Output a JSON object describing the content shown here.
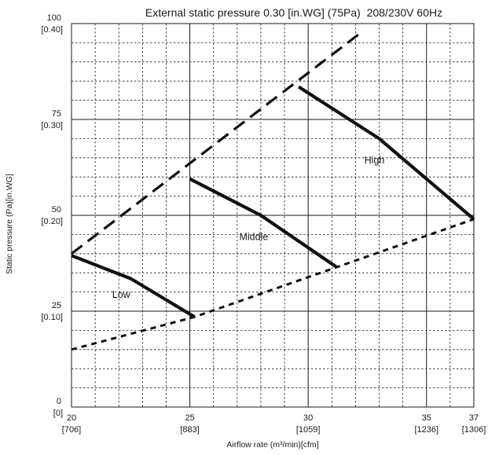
{
  "chart_data": {
    "type": "line",
    "title": "External static pressure 0.30 [in.WG] (75Pa)  208/230V 60Hz",
    "xlabel": "Airflow rate (m³/min)[cfm]",
    "ylabel": "Static pressure (Pa)[in.WG]",
    "xlim": [
      20,
      37
    ],
    "ylim": [
      0,
      100
    ],
    "grid": true,
    "x_ticks": [
      {
        "value": 20,
        "label": "20",
        "sub": "[706]"
      },
      {
        "value": 25,
        "label": "25",
        "sub": "[883]"
      },
      {
        "value": 30,
        "label": "30",
        "sub": "[1059]"
      },
      {
        "value": 35,
        "label": "35",
        "sub": "[1236]"
      },
      {
        "value": 37,
        "label": "37",
        "sub": "[1306]"
      }
    ],
    "y_ticks": [
      {
        "value": 0,
        "label": "0",
        "sub": "[0]"
      },
      {
        "value": 25,
        "label": "25",
        "sub": "[0.10]"
      },
      {
        "value": 50,
        "label": "50",
        "sub": "[0.20]"
      },
      {
        "value": 75,
        "label": "75",
        "sub": "[0.30]"
      },
      {
        "value": 100,
        "label": "100",
        "sub": "[0.40]"
      }
    ],
    "series": [
      {
        "name": "Low",
        "style": "solid",
        "x": [
          20,
          22.5,
          25.2
        ],
        "y": [
          39.5,
          33.5,
          23.5
        ],
        "label_at": [
          22.1,
          28.5
        ]
      },
      {
        "name": "Middle",
        "style": "solid",
        "x": [
          25,
          28,
          31.2
        ],
        "y": [
          59.5,
          50,
          36.5
        ],
        "label_at": [
          27.7,
          43.5
        ]
      },
      {
        "name": "High",
        "style": "solid",
        "x": [
          29.6,
          33,
          37
        ],
        "y": [
          83.5,
          70,
          49
        ],
        "label_at": [
          32.8,
          63.5
        ]
      },
      {
        "name": "",
        "style": "dashed",
        "x": [
          20,
          32.2
        ],
        "y": [
          40,
          97.5
        ]
      },
      {
        "name": "",
        "style": "dotted",
        "x": [
          20,
          25.2,
          37
        ],
        "y": [
          15,
          23.5,
          49
        ]
      }
    ]
  }
}
